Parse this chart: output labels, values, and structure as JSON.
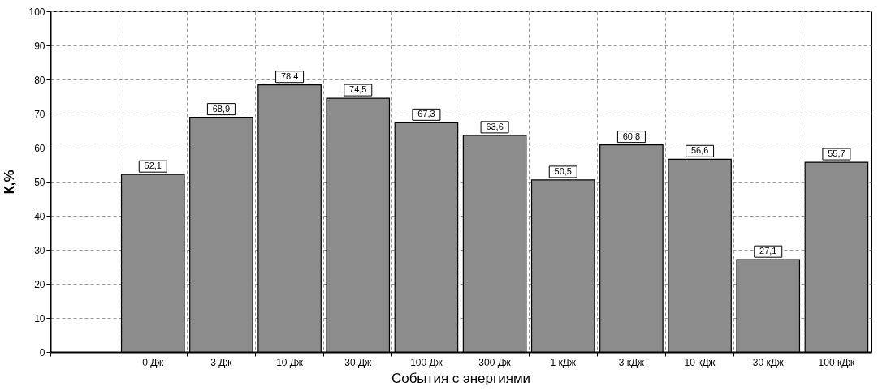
{
  "chart_data": {
    "type": "bar",
    "xlabel": "События с энергиями",
    "ylabel": "К,%",
    "categories": [
      null,
      "0 Дж",
      "3 Дж",
      "10 Дж",
      "30 Дж",
      "100 Дж",
      "300 Дж",
      "1 кДж",
      "3 кДж",
      "10 кДж",
      "30 кДж",
      "100 кДж"
    ],
    "values": [
      null,
      52.1,
      68.9,
      78.4,
      74.5,
      67.3,
      63.6,
      50.5,
      60.8,
      56.6,
      27.1,
      55.7
    ],
    "value_labels": [
      null,
      "52,1",
      "68,9",
      "78,4",
      "74,5",
      "67,3",
      "63,6",
      "50,5",
      "60,8",
      "56,6",
      "27,1",
      "55,7"
    ],
    "color": "#8c8c8c",
    "ylim": [
      0,
      100
    ],
    "yticks": [
      0,
      10,
      20,
      30,
      40,
      50,
      60,
      70,
      80,
      90,
      100
    ],
    "grid": true
  }
}
